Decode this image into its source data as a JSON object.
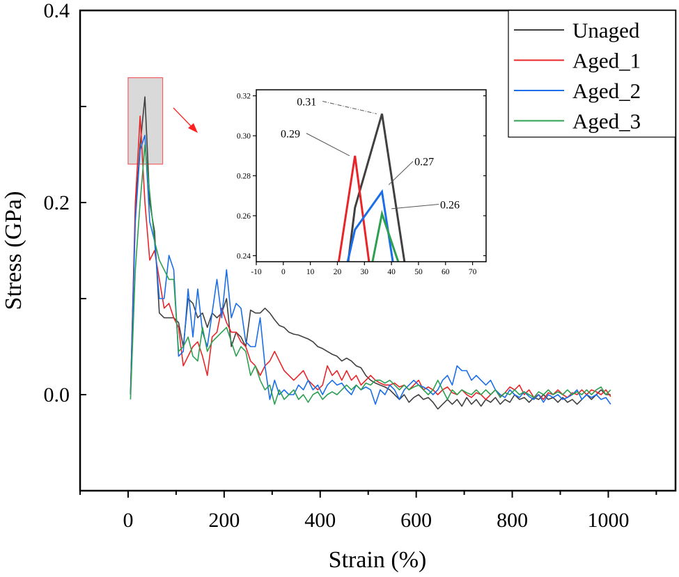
{
  "chart_data": {
    "type": "line",
    "xlabel": "Strain (%)",
    "ylabel": "Stress (GPa)",
    "xlim": [
      -100,
      1140
    ],
    "ylim": [
      -0.1,
      0.4
    ],
    "xticks": [
      0,
      200,
      400,
      600,
      800,
      1000
    ],
    "xtick_labels": [
      "0",
      "200",
      "400",
      "600",
      "800",
      "1000"
    ],
    "yticks": [
      0.0,
      0.2,
      0.4
    ],
    "ytick_labels": [
      "0.0",
      "0.2",
      "0.4"
    ],
    "grid": false,
    "legend_position": "top-right",
    "x": [
      5,
      15,
      25,
      35,
      45,
      55,
      65,
      75,
      85,
      95,
      105,
      115,
      125,
      135,
      145,
      155,
      165,
      175,
      185,
      195,
      205,
      215,
      225,
      235,
      245,
      255,
      265,
      275,
      285,
      295,
      305,
      315,
      325,
      335,
      345,
      355,
      365,
      375,
      385,
      395,
      405,
      415,
      425,
      435,
      445,
      455,
      465,
      475,
      485,
      495,
      505,
      515,
      525,
      535,
      545,
      555,
      565,
      575,
      585,
      595,
      605,
      615,
      625,
      635,
      645,
      655,
      665,
      675,
      685,
      695,
      705,
      715,
      725,
      735,
      745,
      755,
      765,
      775,
      785,
      795,
      805,
      815,
      825,
      835,
      845,
      855,
      865,
      875,
      885,
      895,
      905,
      915,
      925,
      935,
      945,
      955,
      965,
      975,
      985,
      995,
      1005
    ],
    "series": [
      {
        "name": "Unaged",
        "color": "#404040",
        "values": [
          0.0,
          0.19,
          0.26,
          0.31,
          0.2,
          0.17,
          0.085,
          0.08,
          0.08,
          0.08,
          0.075,
          0.05,
          0.1,
          0.095,
          0.08,
          0.085,
          0.07,
          0.085,
          0.08,
          0.085,
          0.1,
          0.05,
          0.065,
          0.06,
          0.05,
          0.088,
          0.085,
          0.085,
          0.09,
          0.085,
          0.078,
          0.072,
          0.07,
          0.065,
          0.063,
          0.062,
          0.06,
          0.058,
          0.055,
          0.05,
          0.048,
          0.045,
          0.042,
          0.04,
          0.035,
          0.038,
          0.035,
          0.03,
          0.028,
          0.02,
          0.015,
          0.012,
          0.01,
          0.008,
          0.005,
          0.0,
          -0.005,
          0.0,
          -0.008,
          -0.003,
          0.0,
          -0.005,
          -0.003,
          -0.008,
          -0.015,
          -0.01,
          -0.005,
          -0.01,
          -0.005,
          -0.012,
          -0.003,
          -0.01,
          -0.005,
          -0.012,
          -0.005,
          -0.008,
          -0.003,
          -0.01,
          -0.005,
          -0.008,
          0.0,
          -0.005,
          -0.003,
          -0.008,
          -0.003,
          -0.005,
          0.0,
          -0.005,
          -0.003,
          -0.008,
          -0.003,
          -0.008,
          -0.005,
          -0.01,
          -0.005,
          0.0,
          -0.005,
          0.0,
          0.005,
          0.0,
          0.0
        ]
      },
      {
        "name": "Aged_1",
        "color": "#e8262a",
        "values": [
          0.0,
          0.2,
          0.29,
          0.2,
          0.14,
          0.15,
          0.12,
          0.09,
          0.095,
          0.08,
          0.07,
          0.03,
          0.04,
          0.05,
          0.055,
          0.04,
          0.02,
          0.06,
          0.065,
          0.09,
          0.075,
          0.065,
          0.065,
          0.055,
          0.05,
          0.035,
          0.03,
          0.02,
          0.03,
          0.035,
          0.045,
          0.035,
          0.025,
          0.02,
          0.015,
          0.02,
          0.025,
          0.015,
          0.01,
          0.005,
          0.01,
          0.03,
          0.02,
          0.025,
          0.015,
          0.025,
          0.015,
          0.02,
          0.01,
          0.015,
          0.02,
          0.015,
          0.012,
          0.01,
          0.01,
          0.012,
          0.008,
          0.01,
          0.005,
          0.01,
          0.015,
          0.005,
          0.008,
          0.005,
          0.0,
          0.005,
          0.008,
          0.002,
          0.0,
          0.005,
          0.0,
          -0.003,
          0.002,
          0.0,
          -0.005,
          0.0,
          0.005,
          -0.002,
          0.002,
          0.008,
          0.005,
          0.01,
          0.0,
          0.005,
          -0.003,
          0.0,
          -0.005,
          0.002,
          0.0,
          0.005,
          0.0,
          -0.003,
          0.002,
          0.0,
          0.005,
          0.0,
          0.005,
          0.003,
          0.0,
          0.005,
          -0.002
        ]
      },
      {
        "name": "Aged_2",
        "color": "#1a6ee8",
        "values": [
          0.0,
          0.18,
          0.255,
          0.27,
          0.18,
          0.16,
          0.1,
          0.1,
          0.145,
          0.13,
          0.04,
          0.045,
          0.11,
          0.06,
          0.11,
          0.065,
          0.05,
          0.085,
          0.12,
          0.08,
          0.13,
          0.08,
          0.095,
          0.09,
          0.055,
          0.05,
          0.05,
          0.08,
          0.03,
          -0.005,
          0.015,
          0.0,
          0.005,
          0.0,
          0.0,
          0.01,
          0.005,
          0.015,
          0.005,
          0.01,
          0.0,
          0.01,
          0.015,
          0.01,
          0.012,
          0.005,
          0.0,
          0.01,
          0.005,
          0.008,
          0.005,
          -0.01,
          0.005,
          0.0,
          0.01,
          0.005,
          -0.005,
          0.005,
          0.01,
          0.015,
          0.01,
          0.008,
          0.005,
          0.0,
          0.005,
          0.015,
          0.02,
          0.01,
          0.03,
          0.025,
          0.025,
          0.015,
          0.02,
          0.015,
          0.01,
          0.015,
          0.005,
          0.0,
          -0.003,
          0.005,
          0.0,
          -0.003,
          0.003,
          -0.002,
          -0.005,
          0.0,
          -0.008,
          0.0,
          -0.003,
          0.0,
          -0.005,
          -0.003,
          0.0,
          0.005,
          -0.005,
          0.0,
          -0.003,
          0.0,
          -0.005,
          -0.003,
          -0.01
        ]
      },
      {
        "name": "Aged_3",
        "color": "#2ca050",
        "values": [
          -0.005,
          0.13,
          0.2,
          0.26,
          0.21,
          0.16,
          0.14,
          0.13,
          0.12,
          0.12,
          0.045,
          0.05,
          0.06,
          0.04,
          0.035,
          0.07,
          0.045,
          0.055,
          0.06,
          0.065,
          0.07,
          0.055,
          0.04,
          0.05,
          0.045,
          0.02,
          0.03,
          0.015,
          0.005,
          0.01,
          -0.01,
          0.005,
          -0.005,
          0.0,
          0.005,
          -0.005,
          0.0,
          -0.008,
          0.0,
          0.003,
          -0.005,
          0.0,
          0.003,
          0.0,
          0.005,
          0.01,
          0.005,
          0.01,
          0.005,
          0.012,
          0.01,
          0.015,
          0.015,
          0.012,
          0.015,
          0.01,
          0.005,
          0.01,
          0.005,
          0.008,
          0.01,
          0.005,
          0.0,
          0.005,
          0.015,
          0.005,
          -0.005,
          0.005,
          0.0,
          0.005,
          0.002,
          0.0,
          0.005,
          0.0,
          0.005,
          0.0,
          0.005,
          -0.003,
          0.002,
          0.0,
          0.005,
          0.0,
          0.003,
          0.0,
          -0.003,
          0.003,
          0.0,
          0.005,
          0.0,
          0.003,
          0.0,
          0.005,
          0.0,
          0.003,
          0.0,
          0.005,
          0.0,
          0.005,
          0.008,
          0.0,
          0.005
        ]
      }
    ],
    "inset": {
      "xlim": [
        -10,
        75
      ],
      "ylim": [
        0.237,
        0.323
      ],
      "xticks": [
        -10,
        0,
        10,
        20,
        30,
        40,
        50,
        60,
        70
      ],
      "xtick_labels": [
        "-10",
        "0",
        "10",
        "20",
        "30",
        "40",
        "50",
        "60",
        "70"
      ],
      "yticks": [
        0.24,
        0.26,
        0.28,
        0.3,
        0.32
      ],
      "ytick_labels": [
        "0.24",
        "0.26",
        "0.28",
        "0.30",
        "0.32"
      ],
      "series": [
        {
          "name": "Unaged",
          "color": "#404040",
          "points": [
            [
              24,
              0.237
            ],
            [
              26.5,
              0.264
            ],
            [
              36.5,
              0.311
            ],
            [
              44.8,
              0.237
            ]
          ]
        },
        {
          "name": "Aged_1",
          "color": "#e8262a",
          "points": [
            [
              20.5,
              0.237
            ],
            [
              26.5,
              0.29
            ],
            [
              31.7,
              0.237
            ]
          ]
        },
        {
          "name": "Aged_2",
          "color": "#1a6ee8",
          "points": [
            [
              23.8,
              0.237
            ],
            [
              26.5,
              0.253
            ],
            [
              36.5,
              0.272
            ],
            [
              40.5,
              0.237
            ]
          ]
        },
        {
          "name": "Aged_3",
          "color": "#2ca050",
          "points": [
            [
              33,
              0.237
            ],
            [
              36.5,
              0.261
            ],
            [
              42.5,
              0.237
            ]
          ]
        }
      ],
      "annotations": [
        {
          "text": "0.31",
          "label_at": [
            5,
            0.3155
          ],
          "points_to": [
            34.5,
            0.311
          ]
        },
        {
          "text": "0.29",
          "label_at": [
            -1,
            0.2995
          ],
          "points_to": [
            24.5,
            0.29
          ]
        },
        {
          "text": "0.27",
          "label_at": [
            48.5,
            0.2855
          ],
          "points_to": [
            39,
            0.2755
          ]
        },
        {
          "text": "0.26",
          "label_at": [
            58,
            0.264
          ],
          "points_to": [
            40,
            0.2635
          ]
        }
      ]
    },
    "highlight_region": {
      "x": [
        0,
        72
      ],
      "y": [
        0.24,
        0.33
      ]
    }
  }
}
